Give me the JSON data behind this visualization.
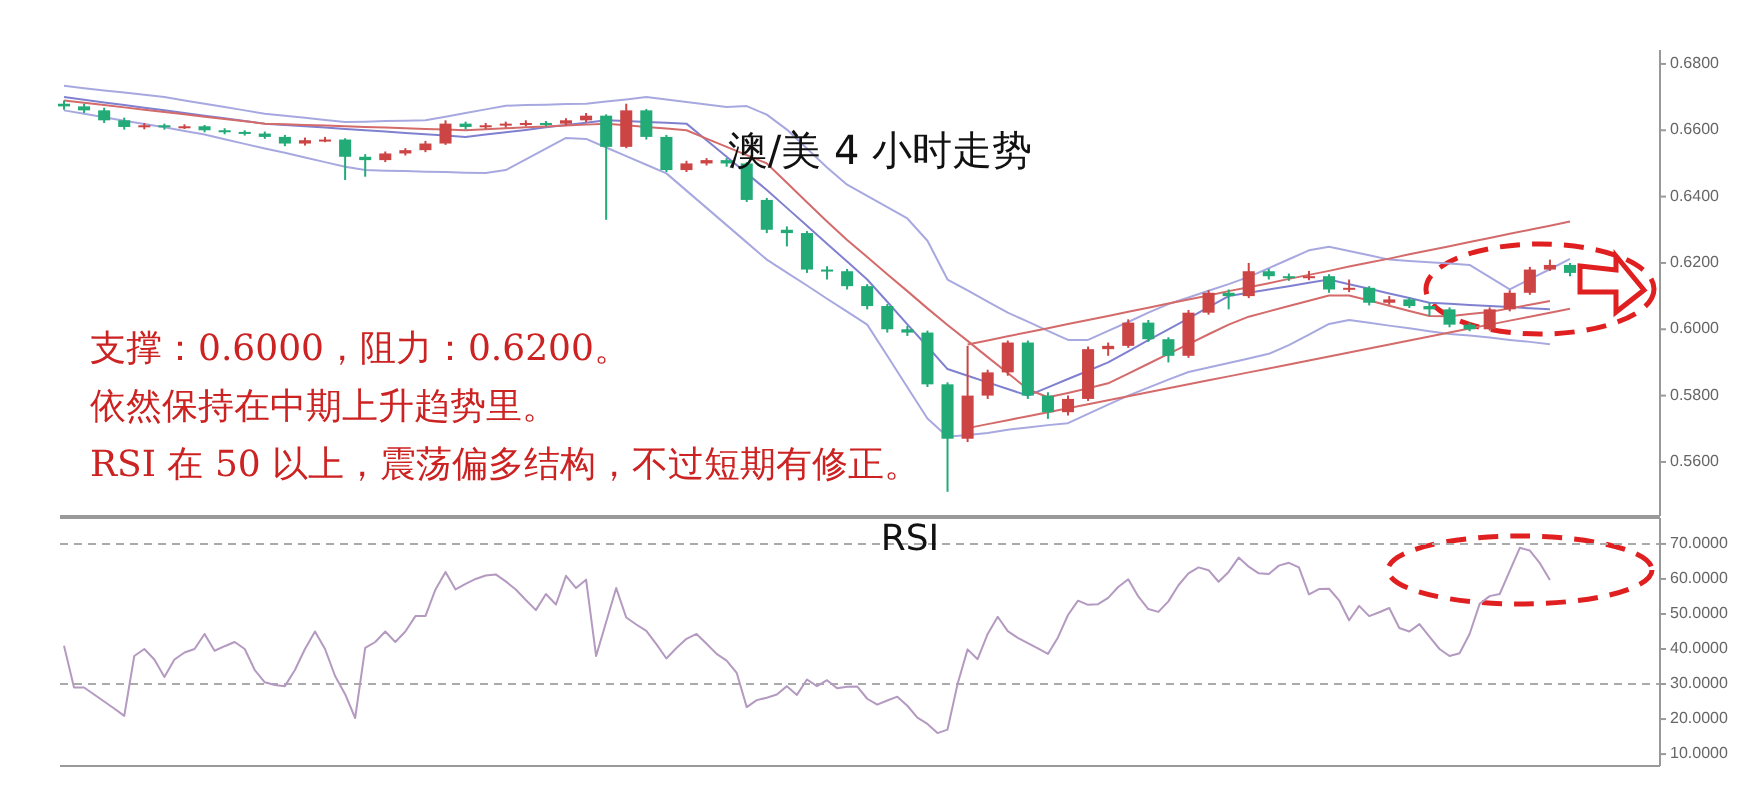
{
  "chart_data": [
    {
      "type": "candlestick",
      "title": "澳/美 4 小时走势",
      "annotations": [
        "支撑：0.6000，阻力：0.6200。",
        "依然保持在中期上升趋势里。",
        "RSI 在 50 以上，震荡偏多结构，不过短期有修正。"
      ],
      "categories": [
        null,
        null,
        null,
        null,
        null,
        null,
        null,
        null,
        null,
        null,
        null,
        null,
        null,
        null,
        null,
        null,
        null,
        null,
        null,
        null,
        null,
        null,
        null,
        null,
        null,
        null,
        null,
        null,
        null,
        null,
        null,
        null,
        null,
        null,
        null,
        null,
        null,
        null,
        null,
        null,
        null,
        null,
        null,
        null,
        null,
        null,
        null,
        null,
        null,
        null,
        null,
        null,
        null,
        null,
        null,
        null,
        null,
        null,
        null,
        null,
        null,
        null,
        null,
        null,
        null,
        null,
        null,
        null,
        null,
        null,
        null,
        null,
        null,
        null,
        null,
        null
      ],
      "ohlc": [
        [
          0.668,
          0.669,
          0.6662,
          0.6672
        ],
        [
          0.6672,
          0.668,
          0.6652,
          0.666
        ],
        [
          0.666,
          0.6668,
          0.6622,
          0.663
        ],
        [
          0.663,
          0.6638,
          0.6602,
          0.661
        ],
        [
          0.661,
          0.6622,
          0.6603,
          0.6615
        ],
        [
          0.6615,
          0.662,
          0.6602,
          0.661
        ],
        [
          0.661,
          0.6618,
          0.6604,
          0.6612
        ],
        [
          0.6612,
          0.6616,
          0.6594,
          0.66
        ],
        [
          0.66,
          0.6606,
          0.6588,
          0.6595
        ],
        [
          0.6595,
          0.66,
          0.6584,
          0.659
        ],
        [
          0.659,
          0.6596,
          0.6574,
          0.658
        ],
        [
          0.658,
          0.6586,
          0.6552,
          0.656
        ],
        [
          0.656,
          0.6578,
          0.6554,
          0.657
        ],
        [
          0.657,
          0.658,
          0.6564,
          0.6572
        ],
        [
          0.6572,
          0.6576,
          0.645,
          0.652
        ],
        [
          0.652,
          0.6528,
          0.646,
          0.651
        ],
        [
          0.651,
          0.6536,
          0.6504,
          0.653
        ],
        [
          0.653,
          0.6546,
          0.6524,
          0.654
        ],
        [
          0.654,
          0.6568,
          0.6534,
          0.656
        ],
        [
          0.656,
          0.663,
          0.6556,
          0.662
        ],
        [
          0.662,
          0.6626,
          0.6602,
          0.661
        ],
        [
          0.661,
          0.6622,
          0.6604,
          0.6615
        ],
        [
          0.6615,
          0.6626,
          0.6608,
          0.662
        ],
        [
          0.662,
          0.663,
          0.6612,
          0.6622
        ],
        [
          0.6622,
          0.6628,
          0.6612,
          0.662
        ],
        [
          0.662,
          0.6636,
          0.6614,
          0.663
        ],
        [
          0.663,
          0.6652,
          0.6624,
          0.6644
        ],
        [
          0.6644,
          0.6648,
          0.633,
          0.655
        ],
        [
          0.655,
          0.668,
          0.6546,
          0.666
        ],
        [
          0.666,
          0.6664,
          0.6572,
          0.658
        ],
        [
          0.658,
          0.6586,
          0.6474,
          0.648
        ],
        [
          0.648,
          0.6508,
          0.6474,
          0.65
        ],
        [
          0.65,
          0.6516,
          0.6494,
          0.651
        ],
        [
          0.651,
          0.6516,
          0.649,
          0.65
        ],
        [
          0.65,
          0.6504,
          0.6384,
          0.639
        ],
        [
          0.639,
          0.6396,
          0.629,
          0.63
        ],
        [
          0.63,
          0.631,
          0.625,
          0.629
        ],
        [
          0.629,
          0.6296,
          0.617,
          0.618
        ],
        [
          0.618,
          0.619,
          0.615,
          0.6175
        ],
        [
          0.6175,
          0.6182,
          0.612,
          0.613
        ],
        [
          0.613,
          0.6136,
          0.606,
          0.607
        ],
        [
          0.607,
          0.6076,
          0.599,
          0.6
        ],
        [
          0.6,
          0.601,
          0.598,
          0.599
        ],
        [
          0.599,
          0.5996,
          0.5826,
          0.5834
        ],
        [
          0.5834,
          0.584,
          0.551,
          0.567
        ],
        [
          0.567,
          0.595,
          0.566,
          0.58
        ],
        [
          0.58,
          0.5878,
          0.579,
          0.587
        ],
        [
          0.587,
          0.5966,
          0.586,
          0.596
        ],
        [
          0.596,
          0.5966,
          0.579,
          0.58
        ],
        [
          0.58,
          0.581,
          0.573,
          0.575
        ],
        [
          0.575,
          0.58,
          0.574,
          0.579
        ],
        [
          0.579,
          0.5948,
          0.5784,
          0.594
        ],
        [
          0.594,
          0.596,
          0.592,
          0.595
        ],
        [
          0.595,
          0.603,
          0.5944,
          0.602
        ],
        [
          0.602,
          0.6028,
          0.5962,
          0.597
        ],
        [
          0.597,
          0.5976,
          0.59,
          0.592
        ],
        [
          0.592,
          0.6058,
          0.5914,
          0.605
        ],
        [
          0.605,
          0.6118,
          0.6044,
          0.611
        ],
        [
          0.611,
          0.612,
          0.606,
          0.61
        ],
        [
          0.61,
          0.62,
          0.6094,
          0.6175
        ],
        [
          0.6175,
          0.6182,
          0.615,
          0.616
        ],
        [
          0.616,
          0.6168,
          0.6146,
          0.6155
        ],
        [
          0.6155,
          0.6176,
          0.6148,
          0.616
        ],
        [
          0.616,
          0.6166,
          0.611,
          0.612
        ],
        [
          0.612,
          0.615,
          0.6112,
          0.6125
        ],
        [
          0.6125,
          0.613,
          0.6072,
          0.608
        ],
        [
          0.608,
          0.61,
          0.6074,
          0.609
        ],
        [
          0.609,
          0.6096,
          0.6064,
          0.607
        ],
        [
          0.607,
          0.608,
          0.604,
          0.606
        ],
        [
          0.606,
          0.6066,
          0.6006,
          0.6014
        ],
        [
          0.6014,
          0.602,
          0.5994,
          0.6
        ],
        [
          0.6,
          0.6066,
          0.5996,
          0.606
        ],
        [
          0.606,
          0.6118,
          0.6054,
          0.611
        ],
        [
          0.611,
          0.6188,
          0.6104,
          0.618
        ],
        [
          0.618,
          0.621,
          0.6176,
          0.6194
        ],
        [
          0.6194,
          0.62,
          0.616,
          0.617
        ]
      ],
      "colors": [
        "#22aa77",
        "#22aa77",
        "#22aa77",
        "#22aa77",
        "#cc4444",
        "#22aa77",
        "#cc4444",
        "#22aa77",
        "#22aa77",
        "#22aa77",
        "#22aa77",
        "#22aa77",
        "#cc4444",
        "#cc4444",
        "#22aa77",
        "#22aa77",
        "#cc4444",
        "#cc4444",
        "#cc4444",
        "#cc4444",
        "#22aa77",
        "#cc4444",
        "#cc4444",
        "#cc4444",
        "#22aa77",
        "#cc4444",
        "#cc4444",
        "#22aa77",
        "#cc4444",
        "#22aa77",
        "#22aa77",
        "#cc4444",
        "#cc4444",
        "#22aa77",
        "#22aa77",
        "#22aa77",
        "#22aa77",
        "#22aa77",
        "#22aa77",
        "#22aa77",
        "#22aa77",
        "#22aa77",
        "#22aa77",
        "#22aa77",
        "#22aa77",
        "#cc4444",
        "#cc4444",
        "#cc4444",
        "#22aa77",
        "#22aa77",
        "#cc4444",
        "#cc4444",
        "#cc4444",
        "#cc4444",
        "#22aa77",
        "#22aa77",
        "#cc4444",
        "#cc4444",
        "#22aa77",
        "#cc4444",
        "#22aa77",
        "#22aa77",
        "#cc4444",
        "#22aa77",
        "#cc4444",
        "#22aa77",
        "#cc4444",
        "#22aa77",
        "#22aa77",
        "#22aa77",
        "#22aa77",
        "#cc4444",
        "#cc4444",
        "#cc4444",
        "#cc4444",
        "#22aa77"
      ],
      "series": [
        {
          "type": "line",
          "color": "#a8a8e0",
          "values": [
            0.6734,
            0.6727,
            0.672,
            0.6714,
            0.6707,
            0.67,
            0.669,
            0.668,
            0.667,
            0.666,
            0.665,
            0.6644,
            0.6638,
            0.6631,
            0.6625,
            0.6626,
            0.6628,
            0.6629,
            0.663,
            0.6641,
            0.6652,
            0.6663,
            0.6674,
            0.6676,
            0.6677,
            0.6679,
            0.668,
            0.6687,
            0.6693,
            0.67,
            0.6693,
            0.6685,
            0.6678,
            0.667,
            0.6673,
            0.6647,
            0.6602,
            0.6545,
            0.6488,
            0.6436,
            0.6402,
            0.6368,
            0.6334,
            0.6267,
            0.615,
            0.6117,
            0.6083,
            0.605,
            0.6023,
            0.5995,
            0.5968,
            0.5968,
            0.5995,
            0.6022,
            0.605,
            0.6076,
            0.6096,
            0.6116,
            0.6136,
            0.6158,
            0.6184,
            0.6211,
            0.6238,
            0.6249,
            0.6236,
            0.6223,
            0.621,
            0.6206,
            0.6202,
            0.6198,
            0.6194,
            0.6157,
            0.612,
            0.6151,
            0.6181,
            0.6212
          ]
        },
        {
          "type": "line",
          "color": "#a8a8e0",
          "values": [
            0.666,
            0.665,
            0.6639,
            0.6629,
            0.6619,
            0.6609,
            0.6598,
            0.6587,
            0.6573,
            0.6559,
            0.6545,
            0.6532,
            0.6518,
            0.6504,
            0.649,
            0.648,
            0.6478,
            0.6477,
            0.6475,
            0.6474,
            0.6472,
            0.6471,
            0.648,
            0.6512,
            0.6545,
            0.6577,
            0.6574,
            0.6548,
            0.6522,
            0.6496,
            0.647,
            0.6418,
            0.6366,
            0.6314,
            0.6262,
            0.621,
            0.6171,
            0.6132,
            0.6092,
            0.6053,
            0.6014,
            0.592,
            0.5825,
            0.5731,
            0.5676,
            0.5681,
            0.5687,
            0.5697,
            0.5704,
            0.5711,
            0.5717,
            0.5745,
            0.5773,
            0.58,
            0.5824,
            0.5848,
            0.5871,
            0.5885,
            0.5898,
            0.5912,
            0.5926,
            0.5952,
            0.5984,
            0.6016,
            0.6028,
            0.602,
            0.6011,
            0.6003,
            0.5994,
            0.5986,
            0.5981,
            0.5975,
            0.5968,
            0.5962,
            0.5955,
            null
          ]
        },
        {
          "type": "line",
          "color": "#8080d0",
          "values": [
            0.67,
            0.6692,
            0.6684,
            0.6676,
            0.6668,
            0.666,
            0.6652,
            0.6644,
            0.6636,
            0.6628,
            0.662,
            0.6616,
            0.6612,
            0.6608,
            0.6604,
            0.66,
            0.6596,
            0.6592,
            0.6588,
            0.6584,
            0.658,
            0.6587,
            0.6594,
            0.6601,
            0.6609,
            0.6616,
            0.6623,
            0.663,
            0.6628,
            0.6625,
            0.6623,
            0.662,
            0.657,
            0.652,
            0.647,
            0.642,
            0.6366,
            0.6312,
            0.6258,
            0.6204,
            0.615,
            0.6083,
            0.6015,
            0.5948,
            0.588,
            0.586,
            0.584,
            0.582,
            0.58,
            0.5825,
            0.585,
            0.5875,
            0.59,
            0.5933,
            0.5967,
            0.6,
            0.6033,
            0.6067,
            0.61,
            0.611,
            0.612,
            0.613,
            0.614,
            0.615,
            0.6136,
            0.6122,
            0.6108,
            0.6094,
            0.608,
            0.6077,
            0.6073,
            0.607,
            0.6067,
            0.6063,
            0.606,
            null
          ]
        },
        {
          "type": "line",
          "color": "#d46a6a",
          "values": [
            0.669,
            0.6683,
            0.6676,
            0.6669,
            0.6662,
            0.6655,
            0.6648,
            0.6641,
            0.6634,
            0.6627,
            0.662,
            0.6618,
            0.6616,
            0.6614,
            0.6612,
            0.661,
            0.6608,
            0.6606,
            0.6604,
            0.6602,
            0.66,
            0.6603,
            0.6606,
            0.6609,
            0.6611,
            0.6614,
            0.6617,
            0.662,
            0.6615,
            0.661,
            0.6605,
            0.66,
            0.6575,
            0.655,
            0.6525,
            0.65,
            0.6442,
            0.6383,
            0.6325,
            0.6269,
            0.6218,
            0.6166,
            0.6115,
            0.6063,
            0.6013,
            0.5965,
            0.5916,
            0.5868,
            0.5819,
            0.5795,
            0.5808,
            0.5822,
            0.5837,
            0.5866,
            0.5896,
            0.5926,
            0.5955,
            0.5985,
            0.6014,
            0.6038,
            0.6054,
            0.607,
            0.6086,
            0.6102,
            0.6102,
            0.6087,
            0.6071,
            0.6055,
            0.604,
            0.6039,
            0.6046,
            0.6052,
            0.6063,
            0.6074,
            0.6085,
            null
          ]
        },
        {
          "type": "line",
          "color": "#d46a6a",
          "values": [
            null,
            null,
            null,
            null,
            null,
            null,
            null,
            null,
            null,
            null,
            null,
            null,
            null,
            null,
            null,
            null,
            null,
            null,
            null,
            null,
            null,
            null,
            null,
            null,
            null,
            null,
            null,
            null,
            null,
            null,
            null,
            null,
            null,
            null,
            null,
            null,
            null,
            null,
            null,
            null,
            null,
            null,
            null,
            null,
            null,
            0.5954,
            0.5966,
            0.5979,
            0.5991,
            0.6003,
            0.6016,
            0.6028,
            0.604,
            0.6053,
            0.6065,
            0.6078,
            0.609,
            0.6102,
            0.6115,
            0.6127,
            0.6139,
            0.6152,
            0.6164,
            0.6176,
            0.6189,
            0.6201,
            0.6213,
            0.6226,
            0.6238,
            0.625,
            0.6263,
            0.6275,
            0.6288,
            0.63,
            0.6312,
            0.6325
          ]
        },
        {
          "type": "line",
          "color": "#d46a6a",
          "values": [
            null,
            null,
            null,
            null,
            null,
            null,
            null,
            null,
            null,
            null,
            null,
            null,
            null,
            null,
            null,
            null,
            null,
            null,
            null,
            null,
            null,
            null,
            null,
            null,
            null,
            null,
            null,
            null,
            null,
            null,
            null,
            null,
            null,
            null,
            null,
            null,
            null,
            null,
            null,
            null,
            null,
            null,
            null,
            null,
            null,
            0.5702,
            0.5714,
            0.5726,
            0.5738,
            0.575,
            0.5762,
            0.5774,
            0.5786,
            0.5798,
            0.581,
            0.5822,
            0.5834,
            0.5846,
            0.5858,
            0.587,
            0.5882,
            0.5894,
            0.5906,
            0.5918,
            0.593,
            0.5942,
            0.5954,
            0.5966,
            0.5978,
            0.599,
            0.6002,
            0.6014,
            0.6026,
            0.6038,
            0.605,
            0.6062
          ]
        }
      ],
      "ylim": [
        0.5437,
        0.6842
      ],
      "yticks": [
        {
          "value": 0.56,
          "label": "0.5600"
        },
        {
          "value": 0.58,
          "label": "0.5800"
        },
        {
          "value": 0.6,
          "label": "0.6000"
        },
        {
          "value": 0.62,
          "label": "0.6200"
        },
        {
          "value": 0.64,
          "label": "0.6400"
        },
        {
          "value": 0.66,
          "label": "0.6600"
        },
        {
          "value": 0.68,
          "label": "0.6800"
        }
      ],
      "tick_labels": "y"
    },
    {
      "type": "line",
      "title": "RSI",
      "categories": [
        null,
        null,
        null,
        null,
        null,
        null,
        null,
        null,
        null,
        null,
        null,
        null,
        null,
        null,
        null,
        null,
        null,
        null,
        null,
        null,
        null,
        null,
        null,
        null,
        null,
        null,
        null,
        null,
        null,
        null,
        null,
        null,
        null,
        null,
        null,
        null,
        null,
        null,
        null,
        null,
        null,
        null,
        null,
        null,
        null,
        null,
        null,
        null,
        null,
        null,
        null,
        null,
        null,
        null,
        null,
        null,
        null,
        null,
        null,
        null,
        null,
        null,
        null,
        null,
        null,
        null,
        null,
        null,
        null,
        null,
        null,
        null,
        null,
        null,
        null,
        null,
        null,
        null,
        null,
        null,
        null,
        null,
        null,
        null,
        null,
        null,
        null,
        null,
        null,
        null,
        null,
        null,
        null,
        null,
        null,
        null,
        null,
        null,
        null,
        null,
        null,
        null,
        null,
        null,
        null,
        null,
        null,
        null,
        null,
        null,
        null,
        null,
        null,
        null,
        null,
        null,
        null,
        null,
        null,
        null,
        null,
        null,
        null,
        null,
        null,
        null,
        null,
        null,
        null,
        null,
        null,
        null,
        null,
        null,
        null,
        null,
        null,
        null,
        null,
        null,
        null,
        null,
        null,
        null,
        null,
        null,
        null,
        null,
        null
      ],
      "series": [
        {
          "color": "#b49ac0",
          "values": [
            40.9,
            29,
            29,
            27,
            25,
            23,
            20.9,
            38,
            40,
            37,
            32,
            37,
            39,
            40,
            44.3,
            39.5,
            40.8,
            42,
            40,
            34,
            30.5,
            29.7,
            29.4,
            34,
            40,
            45,
            40,
            32.3,
            27.1,
            20.3,
            40.3,
            42,
            45,
            42,
            45,
            49.4,
            49.4,
            57,
            62,
            57,
            58.6,
            60,
            61,
            61.3,
            59.3,
            57,
            54,
            51.1,
            55.7,
            52.7,
            60.9,
            57.4,
            59.8,
            38,
            47.7,
            57.4,
            49,
            47,
            45.2,
            41.4,
            37.3,
            40.3,
            42.9,
            44.3,
            41.5,
            38.6,
            36.7,
            33.2,
            23.4,
            25.4,
            26.1,
            27,
            29.4,
            26.9,
            31.3,
            29.4,
            31.1,
            28.8,
            29.2,
            29.3,
            25.8,
            24.1,
            25.3,
            26.4,
            23.8,
            20.4,
            18.6,
            16,
            17,
            30,
            39.9,
            37.1,
            44.3,
            49.2,
            45.1,
            43.2,
            41.7,
            40.2,
            38.6,
            43.3,
            49.7,
            53.8,
            52.6,
            52.8,
            54.6,
            57.7,
            59.9,
            55,
            51.4,
            50.6,
            53.6,
            58.2,
            61.6,
            63.3,
            62.5,
            59.2,
            62,
            66.1,
            63.5,
            61.6,
            61.4,
            63.8,
            64.6,
            63.3,
            55.6,
            57.1,
            57.2,
            53.9,
            48.2,
            52.3,
            49.4,
            50.5,
            51.7,
            46,
            45,
            47.1,
            43.5,
            40,
            38,
            38.8,
            44.3,
            52.9,
            55.1,
            55.7,
            62.3,
            68.9,
            68.1,
            64.5,
            59.7
          ]
        }
      ],
      "ref_lines": [
        {
          "axis": "y",
          "value": 70,
          "color": "#aaaaaa",
          "line_style": "dashed"
        },
        {
          "axis": "y",
          "value": 30,
          "color": "#aaaaaa",
          "line_style": "dashed"
        }
      ],
      "ylim": [
        6.6,
        77.4
      ],
      "yticks": [
        {
          "value": 10,
          "label": "10.0000"
        },
        {
          "value": 20,
          "label": "20.0000"
        },
        {
          "value": 30,
          "label": "30.0000"
        },
        {
          "value": 40,
          "label": "40.0000"
        },
        {
          "value": 50,
          "label": "50.0000"
        },
        {
          "value": 60,
          "label": "60.0000"
        },
        {
          "value": 70,
          "label": "70.0000"
        }
      ],
      "tick_labels": "y"
    }
  ]
}
